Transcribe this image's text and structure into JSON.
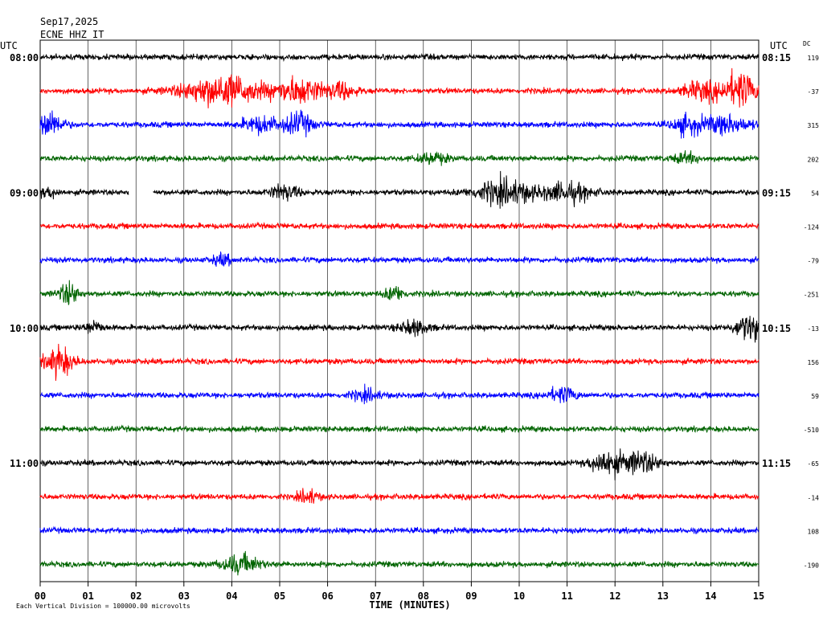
{
  "header": {
    "date": "Sep17,2025",
    "station": "ECNE HHZ IT",
    "utc_left": "UTC",
    "utc_right": "UTC",
    "dc_label": "DC"
  },
  "chart_data": {
    "type": "line",
    "title": "",
    "xlabel": "TIME (MINUTES)",
    "ylabel": "",
    "xlim": [
      0,
      15
    ],
    "x_ticks": [
      "00",
      "01",
      "02",
      "03",
      "04",
      "05",
      "06",
      "07",
      "08",
      "09",
      "10",
      "11",
      "12",
      "13",
      "14",
      "15"
    ],
    "grid": "vertical",
    "trace_colors": [
      "#000000",
      "#ff0000",
      "#0000ff",
      "#006400"
    ],
    "left_time_labels": [
      "08:00",
      "",
      "",
      "",
      "09:00",
      "",
      "",
      "",
      "10:00",
      "",
      "",
      "",
      "11:00",
      "",
      "",
      ""
    ],
    "right_time_labels": [
      "08:15",
      "",
      "",
      "",
      "09:15",
      "",
      "",
      "",
      "10:15",
      "",
      "",
      "",
      "11:15",
      "",
      "",
      ""
    ],
    "dc_offsets": [
      "119",
      "-37",
      "315",
      "202",
      "54",
      "-124",
      "-79",
      "-251",
      "-13",
      "156",
      "59",
      "-510",
      "-65",
      "-14",
      "108",
      "-190"
    ],
    "footer_text": "Each Vertical Division = 100000.00 microvolts"
  }
}
